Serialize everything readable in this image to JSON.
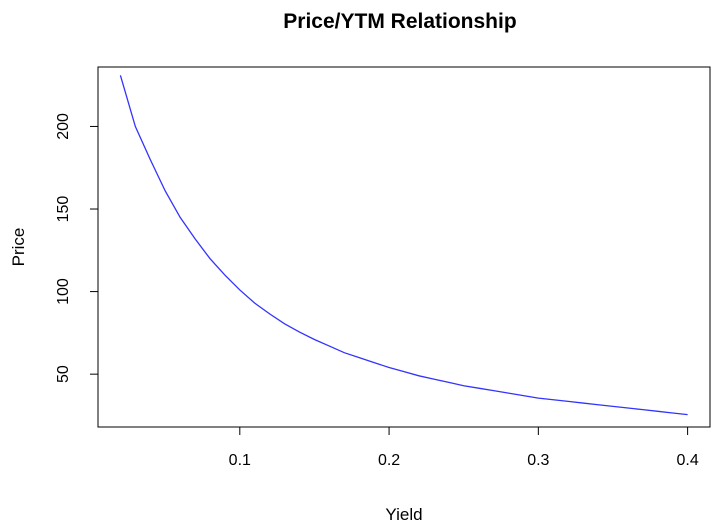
{
  "chart_data": {
    "type": "line",
    "title": "Price/YTM Relationship",
    "xlabel": "Yield",
    "ylabel": "Price",
    "xlim": [
      0.005,
      0.415
    ],
    "ylim": [
      18,
      236
    ],
    "x_ticks": [
      0.1,
      0.2,
      0.3,
      0.4
    ],
    "x_tick_labels": [
      "0.1",
      "0.2",
      "0.3",
      "0.4"
    ],
    "y_ticks": [
      50,
      100,
      150,
      200
    ],
    "y_tick_labels": [
      "50",
      "100",
      "150",
      "200"
    ],
    "grid": false,
    "series": [
      {
        "color": "#3333ff",
        "x": [
          0.02,
          0.03,
          0.04,
          0.05,
          0.06,
          0.07,
          0.08,
          0.09,
          0.1,
          0.11,
          0.12,
          0.13,
          0.14,
          0.15,
          0.16,
          0.17,
          0.18,
          0.19,
          0.2,
          0.21,
          0.22,
          0.23,
          0.24,
          0.25,
          0.26,
          0.27,
          0.28,
          0.29,
          0.3,
          0.31,
          0.32,
          0.33,
          0.34,
          0.35,
          0.36,
          0.37,
          0.38,
          0.39,
          0.4
        ],
        "y": [
          231,
          200,
          180,
          161,
          145,
          132,
          120,
          110,
          101,
          93,
          86.5,
          80.5,
          75.5,
          71,
          67,
          63,
          60,
          57,
          54,
          51.5,
          49,
          47,
          45,
          43,
          41.5,
          40,
          38.5,
          37,
          35.5,
          34.5,
          33.5,
          32.5,
          31.5,
          30.5,
          29.5,
          28.5,
          27.5,
          26.5,
          25.5
        ]
      }
    ]
  }
}
